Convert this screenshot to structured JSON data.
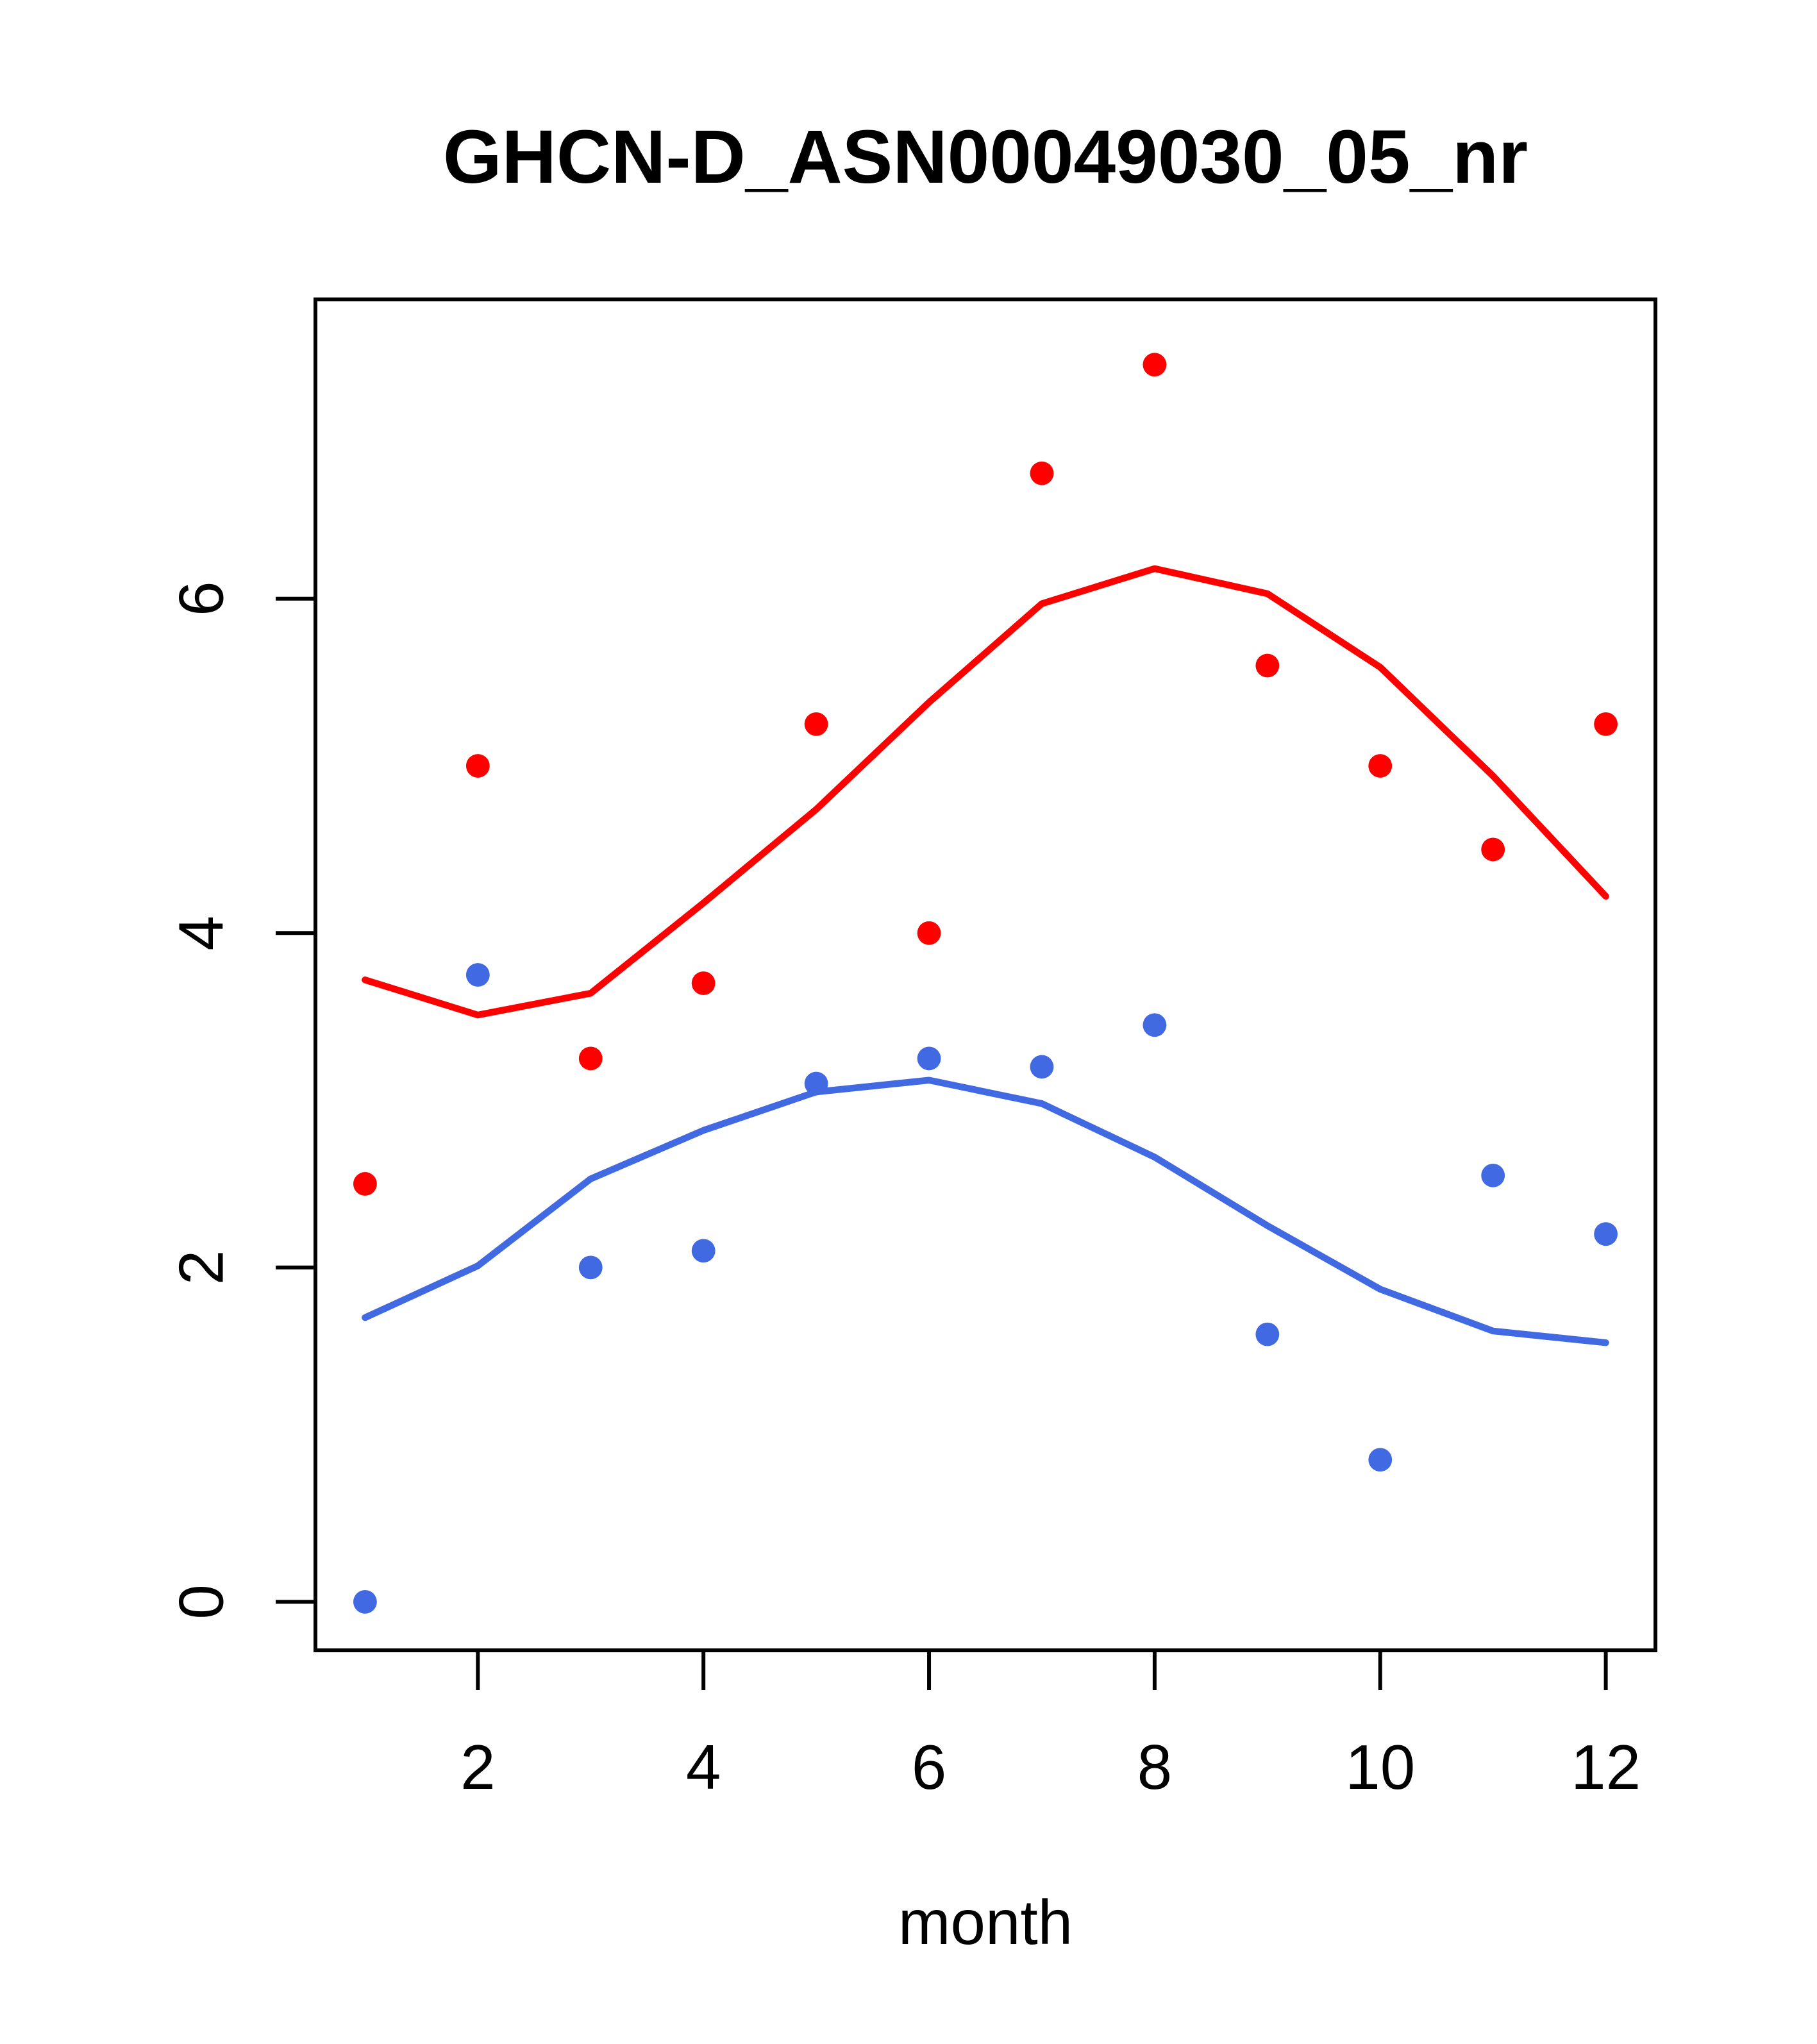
{
  "chart_data": {
    "type": "scatter",
    "title": "GHCN-D_ASN00049030_05_nr",
    "xlabel": "month",
    "ylabel": "",
    "grid": false,
    "legend": null,
    "x": [
      1,
      2,
      3,
      4,
      5,
      6,
      7,
      8,
      9,
      10,
      11,
      12
    ],
    "x_ticks": [
      2,
      4,
      6,
      8,
      10,
      12
    ],
    "y_ticks": [
      0,
      2,
      4,
      6
    ],
    "xlim": [
      0.56,
      12.44
    ],
    "ylim": [
      -0.29,
      7.79
    ],
    "series": [
      {
        "name": "red-monthly-points",
        "kind": "points",
        "color": "#FF0000",
        "values": [
          2.5,
          5.0,
          3.25,
          3.7,
          5.25,
          4.0,
          6.75,
          7.4,
          5.6,
          5.0,
          4.5,
          5.25
        ]
      },
      {
        "name": "blue-monthly-points",
        "kind": "points",
        "color": "#4169E1",
        "values": [
          0.0,
          3.75,
          2.0,
          2.1,
          3.1,
          3.25,
          3.2,
          3.45,
          1.6,
          0.85,
          2.55,
          2.2
        ]
      },
      {
        "name": "red-smooth-line",
        "kind": "line",
        "color": "#FF0000",
        "values": [
          3.72,
          3.51,
          3.64,
          4.18,
          4.74,
          5.38,
          5.97,
          6.18,
          6.03,
          5.59,
          4.94,
          4.22
        ]
      },
      {
        "name": "blue-smooth-line",
        "kind": "line",
        "color": "#4169E1",
        "values": [
          1.7,
          2.01,
          2.53,
          2.82,
          3.05,
          3.12,
          2.98,
          2.66,
          2.25,
          1.87,
          1.62,
          1.55
        ]
      }
    ]
  }
}
